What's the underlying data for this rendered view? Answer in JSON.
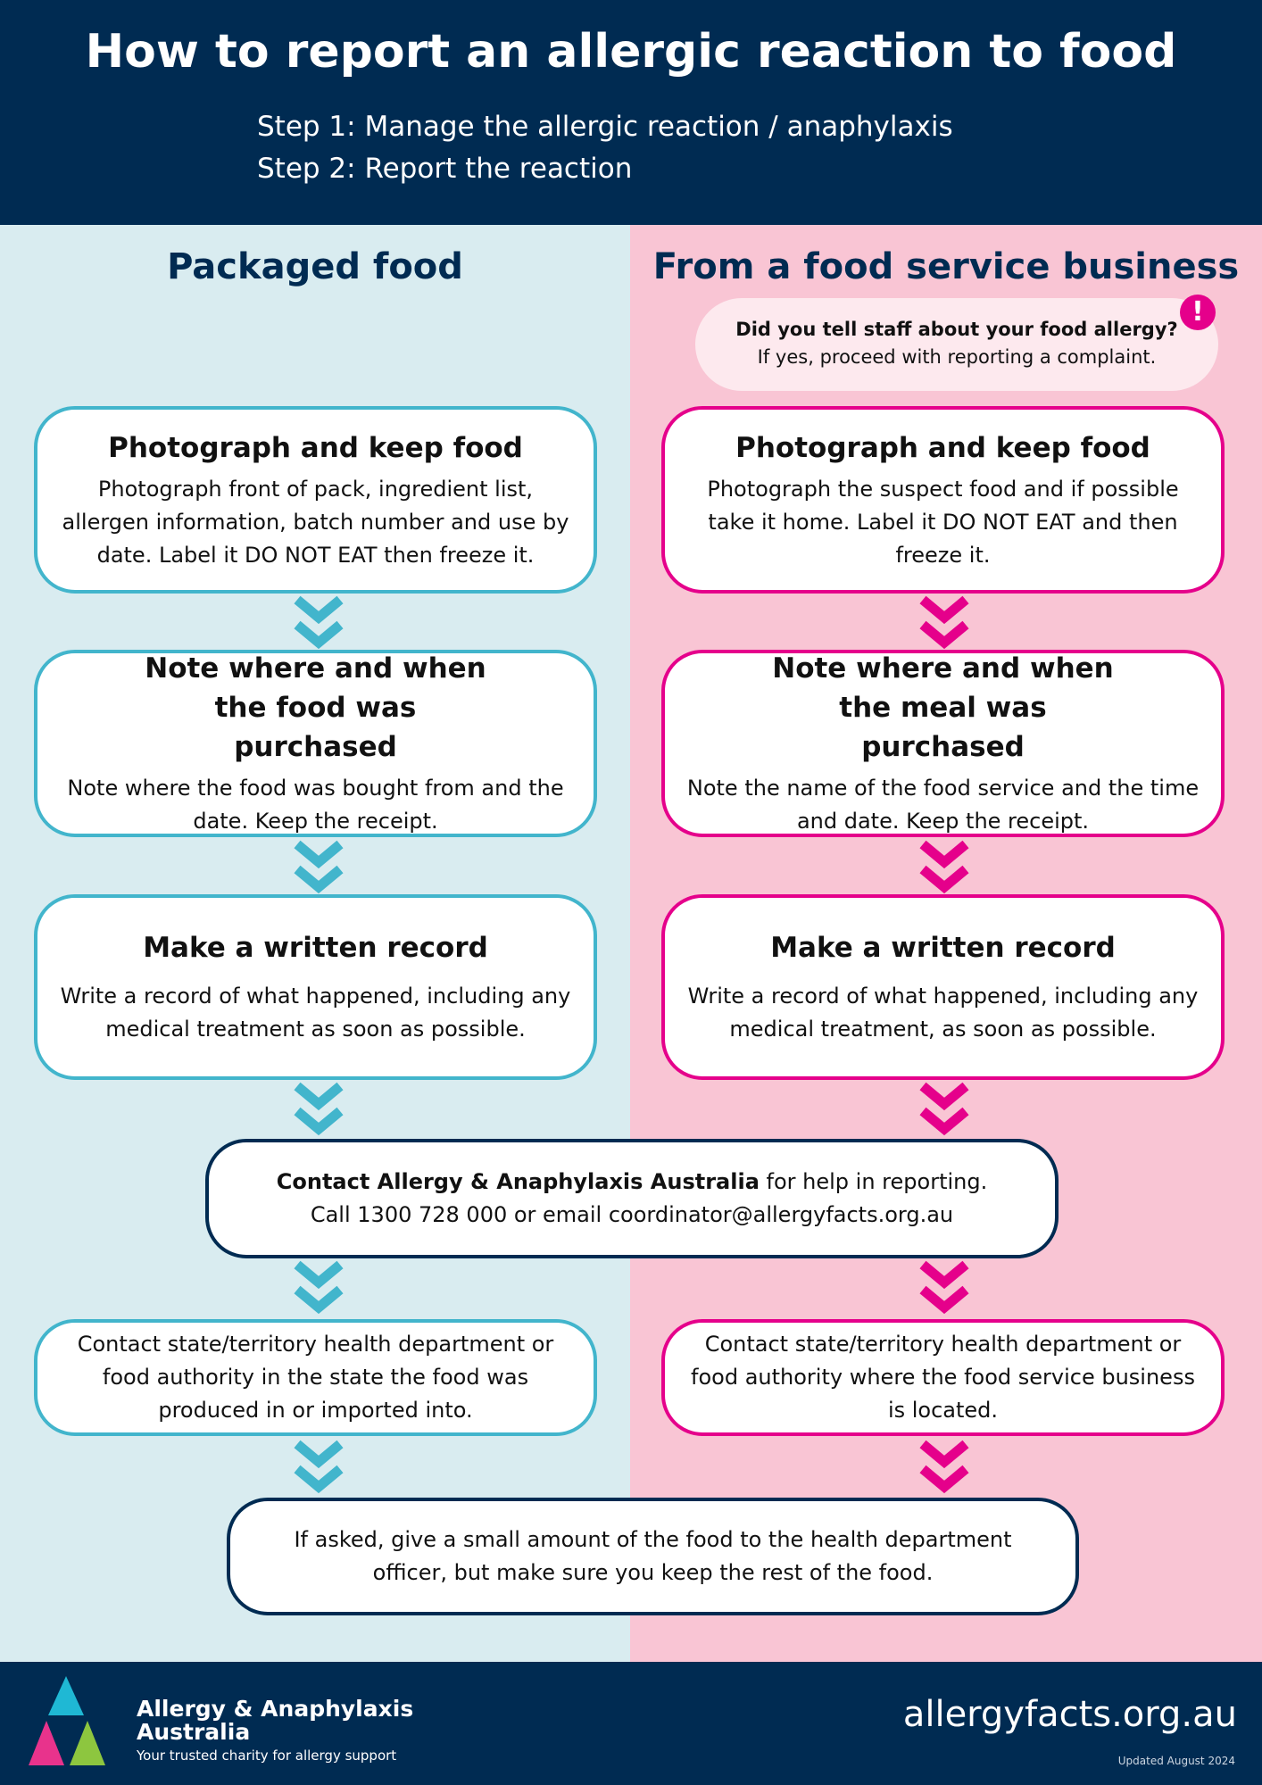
{
  "header": {
    "title": "How to report an allergic reaction to food",
    "step1": "Step 1:  Manage the allergic reaction / anaphylaxis",
    "step2": "Step 2:  Report the reaction"
  },
  "left": {
    "title": "Packaged food",
    "boxes": [
      {
        "heading": "Photograph and keep food",
        "text": "Photograph front of pack, ingredient list, allergen information, batch number and use by date. Label it DO NOT EAT then freeze it."
      },
      {
        "heading": "Note where and when the food was purchased",
        "text": "Note where the food was bought from and the date. Keep the receipt."
      },
      {
        "heading": "Make a written record",
        "text": "Write a record of what happened, including any medical treatment as soon as possible."
      },
      {
        "text": "Contact state/territory health department or food authority in the state the food was produced in or imported into."
      }
    ]
  },
  "right": {
    "title": "From a food service business",
    "note": {
      "question": "Did you tell staff about your food allergy?",
      "text": "If yes, proceed with reporting a complaint.",
      "icon": "exclamation-icon"
    },
    "boxes": [
      {
        "heading": "Photograph and keep food",
        "text": "Photograph the suspect food and if possible take it home. Label it DO NOT EAT and then freeze it."
      },
      {
        "heading": "Note where and when the meal was purchased",
        "text": "Note the name of the food service and the time and date. Keep the receipt."
      },
      {
        "heading": "Make a written record",
        "text": "Write a record of what happened, including any medical treatment, as soon as possible."
      },
      {
        "text": "Contact state/territory health department or food authority where the food service business is located."
      }
    ]
  },
  "contact": {
    "bold": "Contact Allergy & Anaphylaxis Australia",
    "rest": " for help in reporting.",
    "line2": "Call 1300 728 000 or email coordinator@allergyfacts.org.au"
  },
  "final": {
    "text": "If asked, give a small amount of the food to the health department officer, but make sure you keep the rest of the food."
  },
  "footer": {
    "logo_line1": "Allergy & Anaphylaxis",
    "logo_line2": "Australia",
    "tagline": "Your trusted charity for allergy support",
    "website": "allergyfacts.org.au",
    "updated": "Updated August 2024"
  },
  "colors": {
    "navy": "#002b52",
    "teal": "#42b5cc",
    "magenta": "#e5008b",
    "left_bg": "#d9ecf0",
    "right_bg": "#f9c5d4"
  }
}
